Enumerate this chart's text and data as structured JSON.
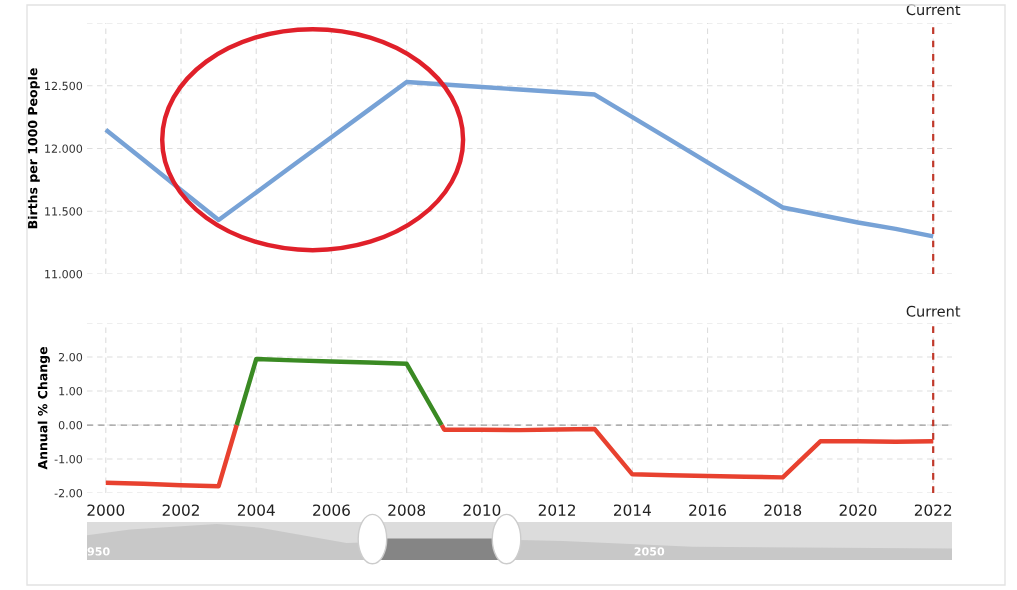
{
  "chart_data": [
    {
      "type": "line",
      "ylabel": "Births per 1000 People",
      "x": [
        2000,
        2001,
        2002,
        2003,
        2004,
        2005,
        2006,
        2007,
        2008,
        2009,
        2010,
        2011,
        2012,
        2013,
        2014,
        2015,
        2016,
        2017,
        2018,
        2019,
        2020,
        2021,
        2022
      ],
      "series": [
        {
          "color": "#77a2d6",
          "values": [
            12.15,
            11.91,
            11.67,
            11.43,
            11.65,
            11.87,
            12.09,
            12.31,
            12.53,
            12.51,
            12.49,
            12.47,
            12.45,
            12.43,
            12.25,
            12.07,
            11.89,
            11.71,
            11.53,
            11.47,
            11.41,
            11.36,
            11.3
          ]
        }
      ],
      "xlim": [
        1999.5,
        2022.5
      ],
      "xticks": [
        2000,
        2002,
        2004,
        2006,
        2008,
        2010,
        2012,
        2014,
        2016,
        2018,
        2020,
        2022
      ],
      "ylim": [
        11.0,
        13.0
      ],
      "yticks": [
        {
          "value": 11.0,
          "label": "11.000"
        },
        {
          "value": 11.5,
          "label": "11.500"
        },
        {
          "value": 12.0,
          "label": "12.000"
        },
        {
          "value": 12.5,
          "label": "12.500"
        },
        {
          "value": 13.0,
          "label": null
        }
      ],
      "tick_labels": "y",
      "grid": true,
      "marker": "none",
      "line_style": "solid",
      "legend": false,
      "ref_lines": [
        {
          "axis": "x",
          "value": 2022,
          "label": "Current",
          "color": "#c0392b",
          "line_style": "dotted"
        }
      ]
    },
    {
      "type": "line",
      "ylabel": "Annual % Change",
      "series": [
        {
          "color": "#e8412f",
          "x": [
            2000,
            2001,
            2002,
            2003,
            2003.48,
            2006,
            2008.93,
            2009,
            2010,
            2011,
            2012,
            2013,
            2014,
            2015,
            2016,
            2017,
            2018,
            2019,
            2020,
            2021,
            2022
          ],
          "values": [
            -1.7,
            -1.73,
            -1.77,
            -1.8,
            0,
            null,
            0,
            -0.14,
            -0.14,
            -0.15,
            -0.13,
            -0.12,
            -1.45,
            -1.48,
            -1.5,
            -1.52,
            -1.54,
            -0.48,
            -0.48,
            -0.49,
            -0.48
          ]
        },
        {
          "color": "#3a8a23",
          "x": [
            2003.48,
            2004,
            2005,
            2006,
            2007,
            2008,
            2008.93
          ],
          "values": [
            0,
            1.94,
            1.9,
            1.87,
            1.84,
            1.8,
            0
          ]
        }
      ],
      "xlim": [
        1999.5,
        2022.5
      ],
      "xticks": [
        2000,
        2002,
        2004,
        2006,
        2008,
        2010,
        2012,
        2014,
        2016,
        2018,
        2020,
        2022
      ],
      "ylim": [
        -2.0,
        3.0
      ],
      "yticks": [
        {
          "value": -2.0,
          "label": "-2.00"
        },
        {
          "value": -1.0,
          "label": "-1.00"
        },
        {
          "value": 0.0,
          "label": "0.00"
        },
        {
          "value": 1.0,
          "label": "1.00"
        },
        {
          "value": 2.0,
          "label": "2.00"
        },
        {
          "value": 3.0,
          "label": null
        }
      ],
      "grid": true,
      "marker": "none",
      "line_style": "solid",
      "legend": false,
      "ref_lines": [
        {
          "axis": "x",
          "value": 2022,
          "label": "Current",
          "color": "#c0392b",
          "line_style": "dotted"
        },
        {
          "axis": "y",
          "value": 0,
          "color": "#999999",
          "line_style": "dashed"
        }
      ]
    },
    {
      "type": "other",
      "annotations": [
        "950",
        "2050"
      ]
    }
  ]
}
